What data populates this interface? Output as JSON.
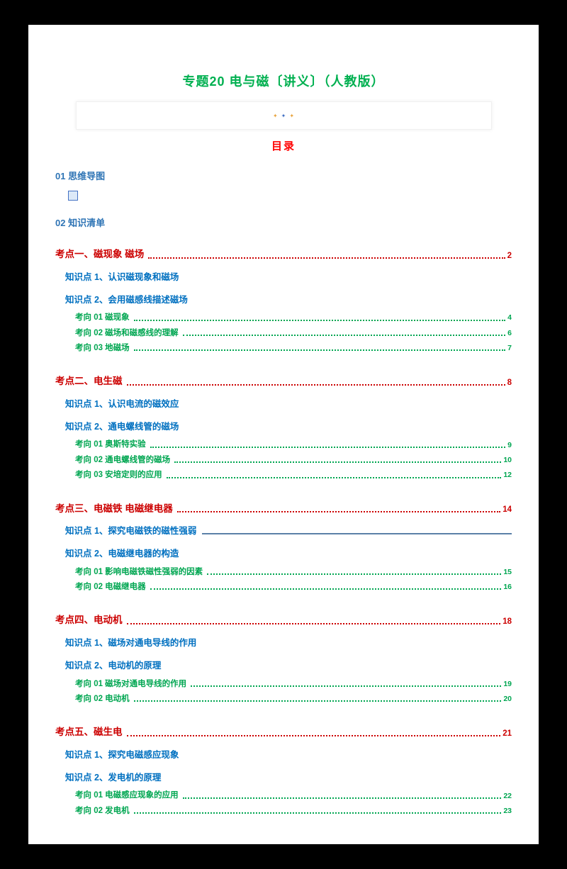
{
  "colors": {
    "title_green": "#00B050",
    "toc_red": "#FF0000",
    "heading_red": "#CC0000",
    "knowledge_blue": "#0070C0",
    "nav_blue": "#2E74B5",
    "direction_green": "#00A651",
    "rule_slate": "#5B81A8"
  },
  "header": {
    "title": "专题20 电与磁〔讲义〕（人教版）",
    "banner": {
      "star_left": "✦",
      "star_mid": "✦",
      "star_right": "✦"
    },
    "toc_title": "目录",
    "nav1": "01 思维导图",
    "nav2": "02 知识清单"
  },
  "toc": {
    "sections": [
      {
        "heading": "考点一、磁现象 磁场",
        "page": "2",
        "kp1": "知识点 1、认识磁现象和磁场",
        "kp2": "知识点 2、会用磁感线描述磁场",
        "kx1": {
          "label": "考向 01 磁现象",
          "page": "4"
        },
        "kx2": {
          "label": "考向 02 磁场和磁感线的理解",
          "page": "6"
        },
        "kx3": {
          "label": "考向 03 地磁场",
          "page": "7"
        }
      },
      {
        "heading": "考点二、电生磁",
        "page": "8",
        "kp1": "知识点 1、认识电流的磁效应",
        "kp2": "知识点 2、通电螺线管的磁场",
        "kx1": {
          "label": "考向 01 奥斯特实验",
          "page": "9"
        },
        "kx2": {
          "label": "考向 02 通电螺线管的磁场",
          "page": "10"
        },
        "kx3": {
          "label": "考向 03 安培定则的应用",
          "page": "12"
        }
      },
      {
        "heading": "考点三、电磁铁 电磁继电器",
        "page": "14",
        "kp1": "知识点 1、探究电磁铁的磁性强弱",
        "kp2": "知识点 2、电磁继电器的构造",
        "kx1": {
          "label": "考向 01 影响电磁铁磁性强弱的因素",
          "page": "15"
        },
        "kx2": {
          "label": "考向 02 电磁继电器",
          "page": "16"
        }
      },
      {
        "heading": "考点四、电动机",
        "page": "18",
        "kp1": "知识点 1、磁场对通电导线的作用",
        "kp2": "知识点 2、电动机的原理",
        "kx1": {
          "label": "考向 01 磁场对通电导线的作用",
          "page": "19"
        },
        "kx2": {
          "label": "考向 02 电动机",
          "page": "20"
        }
      },
      {
        "heading": "考点五、磁生电",
        "page": "21",
        "kp1": "知识点 1、探究电磁感应现象",
        "kp2": "知识点 2、发电机的原理",
        "kx1": {
          "label": "考向 01 电磁感应现象的应用",
          "page": "22"
        },
        "kx2": {
          "label": "考向 02 发电机",
          "page": "23"
        }
      }
    ]
  }
}
